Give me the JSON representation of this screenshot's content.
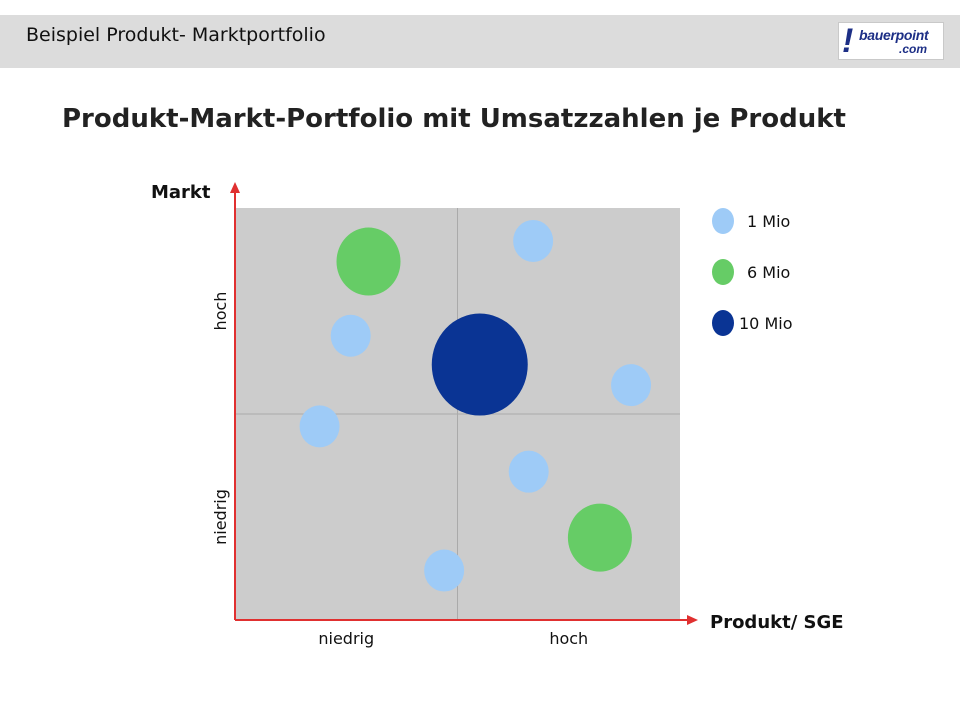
{
  "header": {
    "title": "Beispiel Produkt- Marktportfolio",
    "logo": {
      "line1": "bauerpoint",
      "line2": ".com",
      "mark": "!"
    }
  },
  "colors": {
    "header_bg": "#dcdcdc",
    "plot_bg": "#cccccc",
    "axis": "#e03030",
    "small": "#9ecbf7",
    "medium": "#66cc66",
    "large": "#0a3494"
  },
  "chart_data": {
    "type": "scatter",
    "title": "Produkt-Markt-Portfolio mit Umsatzzahlen je Produkt",
    "xlabel": "Produkt/ SGE",
    "ylabel": "Markt",
    "x_categories": [
      "niedrig",
      "hoch"
    ],
    "y_categories": [
      "niedrig",
      "hoch"
    ],
    "xlim": [
      0,
      1
    ],
    "ylim": [
      0,
      1
    ],
    "legend": {
      "position": "right",
      "entries": [
        {
          "label": "1 Mio",
          "value": 1,
          "color": "#9ecbf7"
        },
        {
          "label": "6 Mio",
          "value": 6,
          "color": "#66cc66"
        },
        {
          "label": "10 Mio",
          "value": 10,
          "color": "#0a3494"
        }
      ]
    },
    "points": [
      {
        "x": 0.3,
        "y": 0.87,
        "value": 6
      },
      {
        "x": 0.67,
        "y": 0.92,
        "value": 1
      },
      {
        "x": 0.26,
        "y": 0.69,
        "value": 1
      },
      {
        "x": 0.55,
        "y": 0.62,
        "value": 10
      },
      {
        "x": 0.89,
        "y": 0.57,
        "value": 1
      },
      {
        "x": 0.19,
        "y": 0.47,
        "value": 1
      },
      {
        "x": 0.66,
        "y": 0.36,
        "value": 1
      },
      {
        "x": 0.82,
        "y": 0.2,
        "value": 6
      },
      {
        "x": 0.47,
        "y": 0.12,
        "value": 1
      }
    ]
  }
}
